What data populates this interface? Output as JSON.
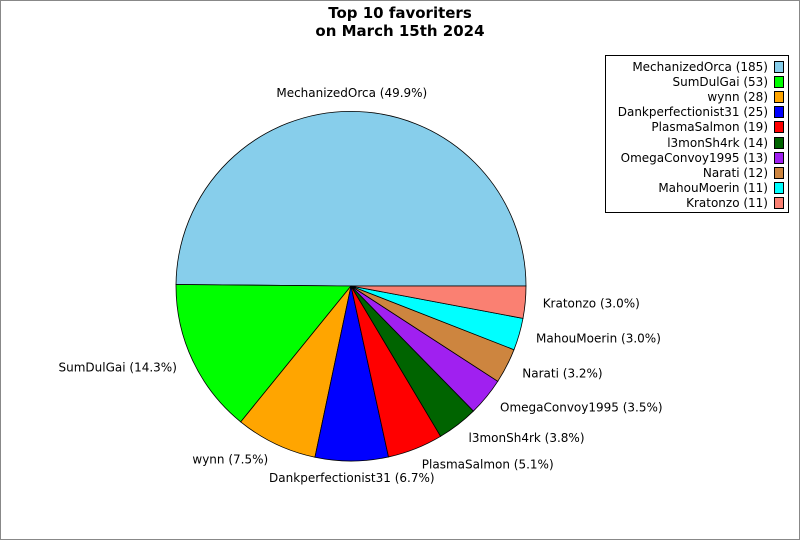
{
  "chart_data": {
    "type": "pie",
    "title": "Top 10 favoriters\non March 15th 2024",
    "title_lines": [
      "Top 10 favoriters",
      "on March 15th 2024"
    ],
    "legend_placement": "top-right",
    "slices": [
      {
        "name": "MechanizedOrca",
        "value": 185,
        "percent_label": "MechanizedOrca (49.9%)",
        "legend_label": "MechanizedOrca (185)",
        "color": "#87CEEB"
      },
      {
        "name": "SumDulGai",
        "value": 53,
        "percent_label": "SumDulGai (14.3%)",
        "legend_label": "SumDulGai (53)",
        "color": "#00FF00"
      },
      {
        "name": "wynn",
        "value": 28,
        "percent_label": "wynn (7.5%)",
        "legend_label": "wynn (28)",
        "color": "#FFA500"
      },
      {
        "name": "Dankperfectionist31",
        "value": 25,
        "percent_label": "Dankperfectionist31 (6.7%)",
        "legend_label": "Dankperfectionist31 (25)",
        "color": "#0000FF"
      },
      {
        "name": "PlasmaSalmon",
        "value": 19,
        "percent_label": "PlasmaSalmon (5.1%)",
        "legend_label": "PlasmaSalmon (19)",
        "color": "#FF0000"
      },
      {
        "name": "l3monSh4rk",
        "value": 14,
        "percent_label": "l3monSh4rk (3.8%)",
        "legend_label": "l3monSh4rk (14)",
        "color": "#006400"
      },
      {
        "name": "OmegaConvoy1995",
        "value": 13,
        "percent_label": "OmegaConvoy1995 (3.5%)",
        "legend_label": "OmegaConvoy1995 (13)",
        "color": "#A020F0"
      },
      {
        "name": "Narati",
        "value": 12,
        "percent_label": "Narati (3.2%)",
        "legend_label": "Narati (12)",
        "color": "#CD853F"
      },
      {
        "name": "MahouMoerin",
        "value": 11,
        "percent_label": "MahouMoerin (3.0%)",
        "legend_label": "MahouMoerin (11)",
        "color": "#00FFFF"
      },
      {
        "name": "Kratonzo",
        "value": 11,
        "percent_label": "Kratonzo (3.0%)",
        "legend_label": "Kratonzo (11)",
        "color": "#FA8072"
      }
    ]
  }
}
